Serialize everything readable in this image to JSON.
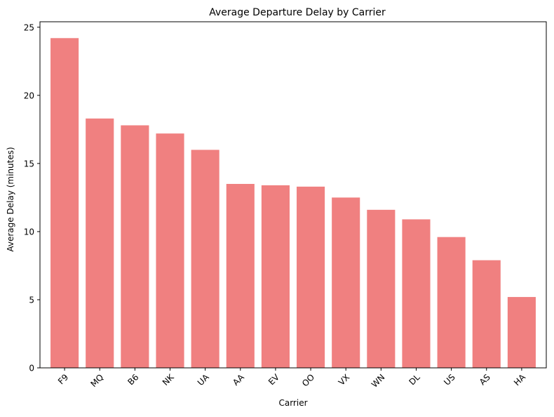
{
  "chart_data": {
    "type": "bar",
    "title": "Average Departure Delay by Carrier",
    "xlabel": "Carrier",
    "ylabel": "Average Delay (minutes)",
    "categories": [
      "F9",
      "MQ",
      "B6",
      "NK",
      "UA",
      "AA",
      "EV",
      "OO",
      "VX",
      "WN",
      "DL",
      "US",
      "AS",
      "HA"
    ],
    "values": [
      24.2,
      18.3,
      17.8,
      17.2,
      16.0,
      13.5,
      13.4,
      13.3,
      12.5,
      11.6,
      10.9,
      9.6,
      7.9,
      5.2
    ],
    "ylim": [
      0,
      25.4
    ],
    "yticks": [
      0,
      5,
      10,
      15,
      20,
      25
    ],
    "grid": false,
    "bar_color": "#f08080"
  }
}
